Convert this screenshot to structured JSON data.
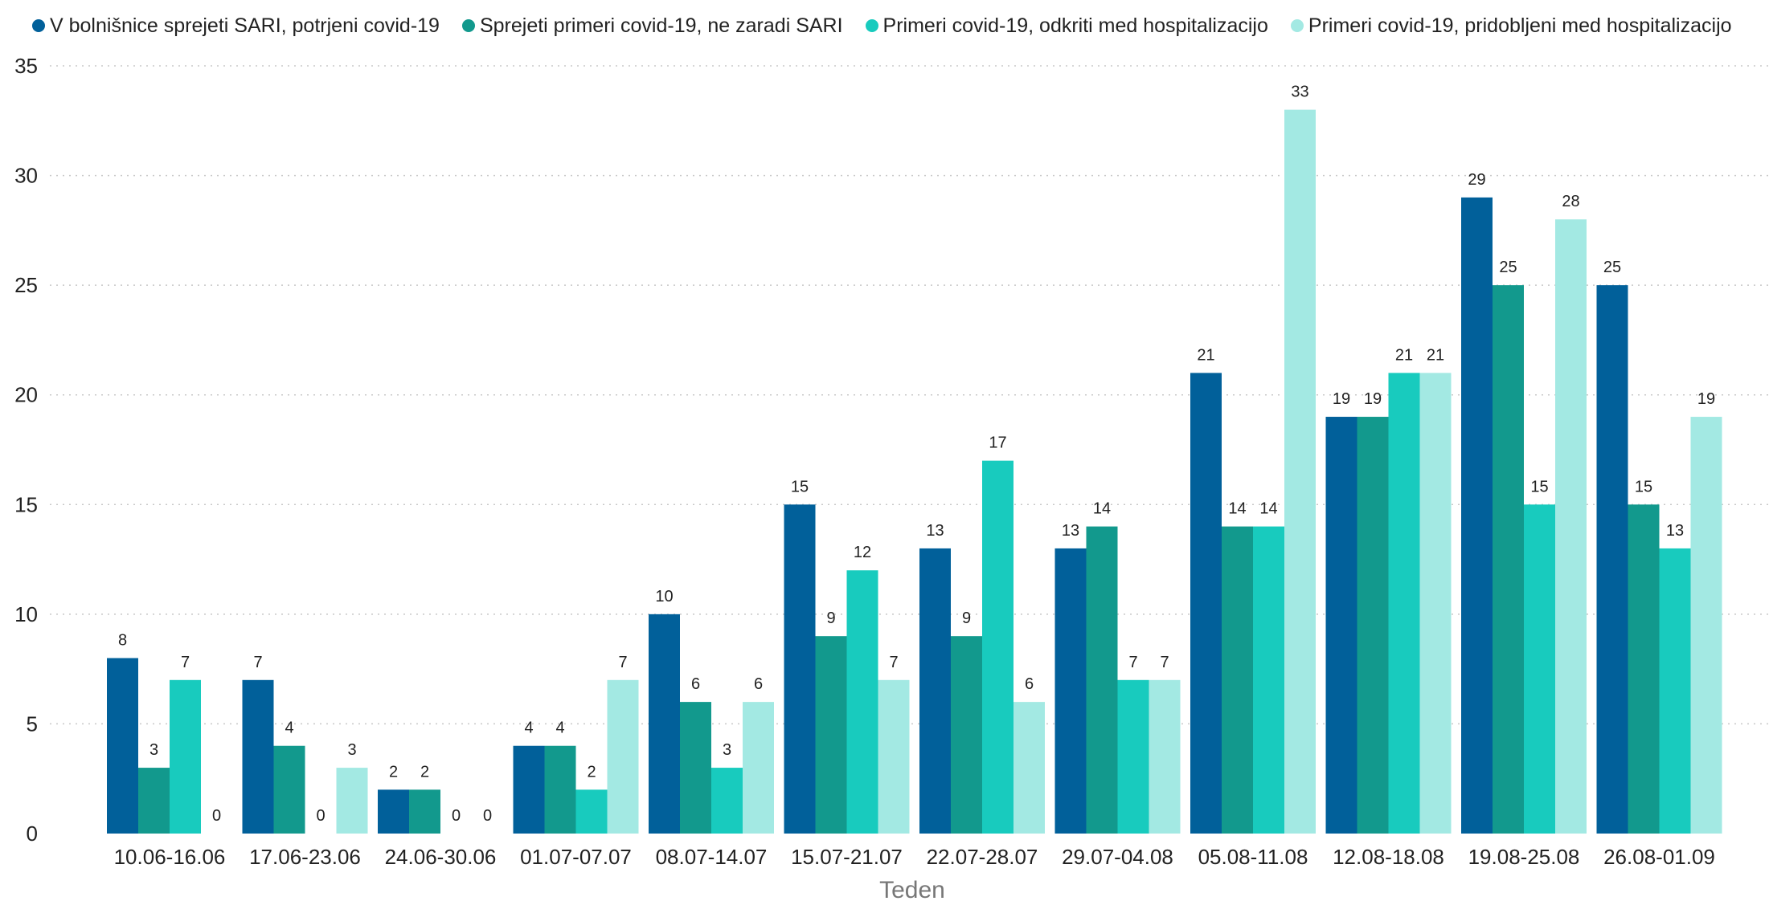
{
  "chart_data": {
    "type": "bar",
    "title": "",
    "xlabel": "Teden",
    "ylabel": "",
    "ylim": [
      0,
      35
    ],
    "yticks": [
      0,
      5,
      10,
      15,
      20,
      25,
      30,
      35
    ],
    "grid": "horizontal dotted",
    "legend_position": "top",
    "categories": [
      "10.06-16.06",
      "17.06-23.06",
      "24.06-30.06",
      "01.07-07.07",
      "08.07-14.07",
      "15.07-21.07",
      "22.07-28.07",
      "29.07-04.08",
      "05.08-11.08",
      "12.08-18.08",
      "19.08-25.08",
      "26.08-01.09"
    ],
    "series": [
      {
        "name": "V bolnišnice sprejeti SARI, potrjeni covid-19",
        "color": "#01609a",
        "values": [
          8,
          7,
          2,
          4,
          10,
          15,
          13,
          13,
          21,
          19,
          29,
          25
        ]
      },
      {
        "name": "Sprejeti primeri covid-19, ne zaradi SARI",
        "color": "#12998d",
        "values": [
          3,
          4,
          2,
          4,
          6,
          9,
          9,
          14,
          14,
          19,
          25,
          15
        ]
      },
      {
        "name": "Primeri covid-19, odkriti med hospitalizacijo",
        "color": "#18cbbe",
        "values": [
          7,
          0,
          0,
          2,
          3,
          12,
          17,
          7,
          14,
          21,
          15,
          13
        ]
      },
      {
        "name": "Primeri covid-19, pridobljeni med hospitalizacijo",
        "color": "#a3e9e3",
        "values": [
          0,
          3,
          0,
          7,
          6,
          7,
          6,
          7,
          33,
          21,
          28,
          19
        ]
      }
    ]
  }
}
